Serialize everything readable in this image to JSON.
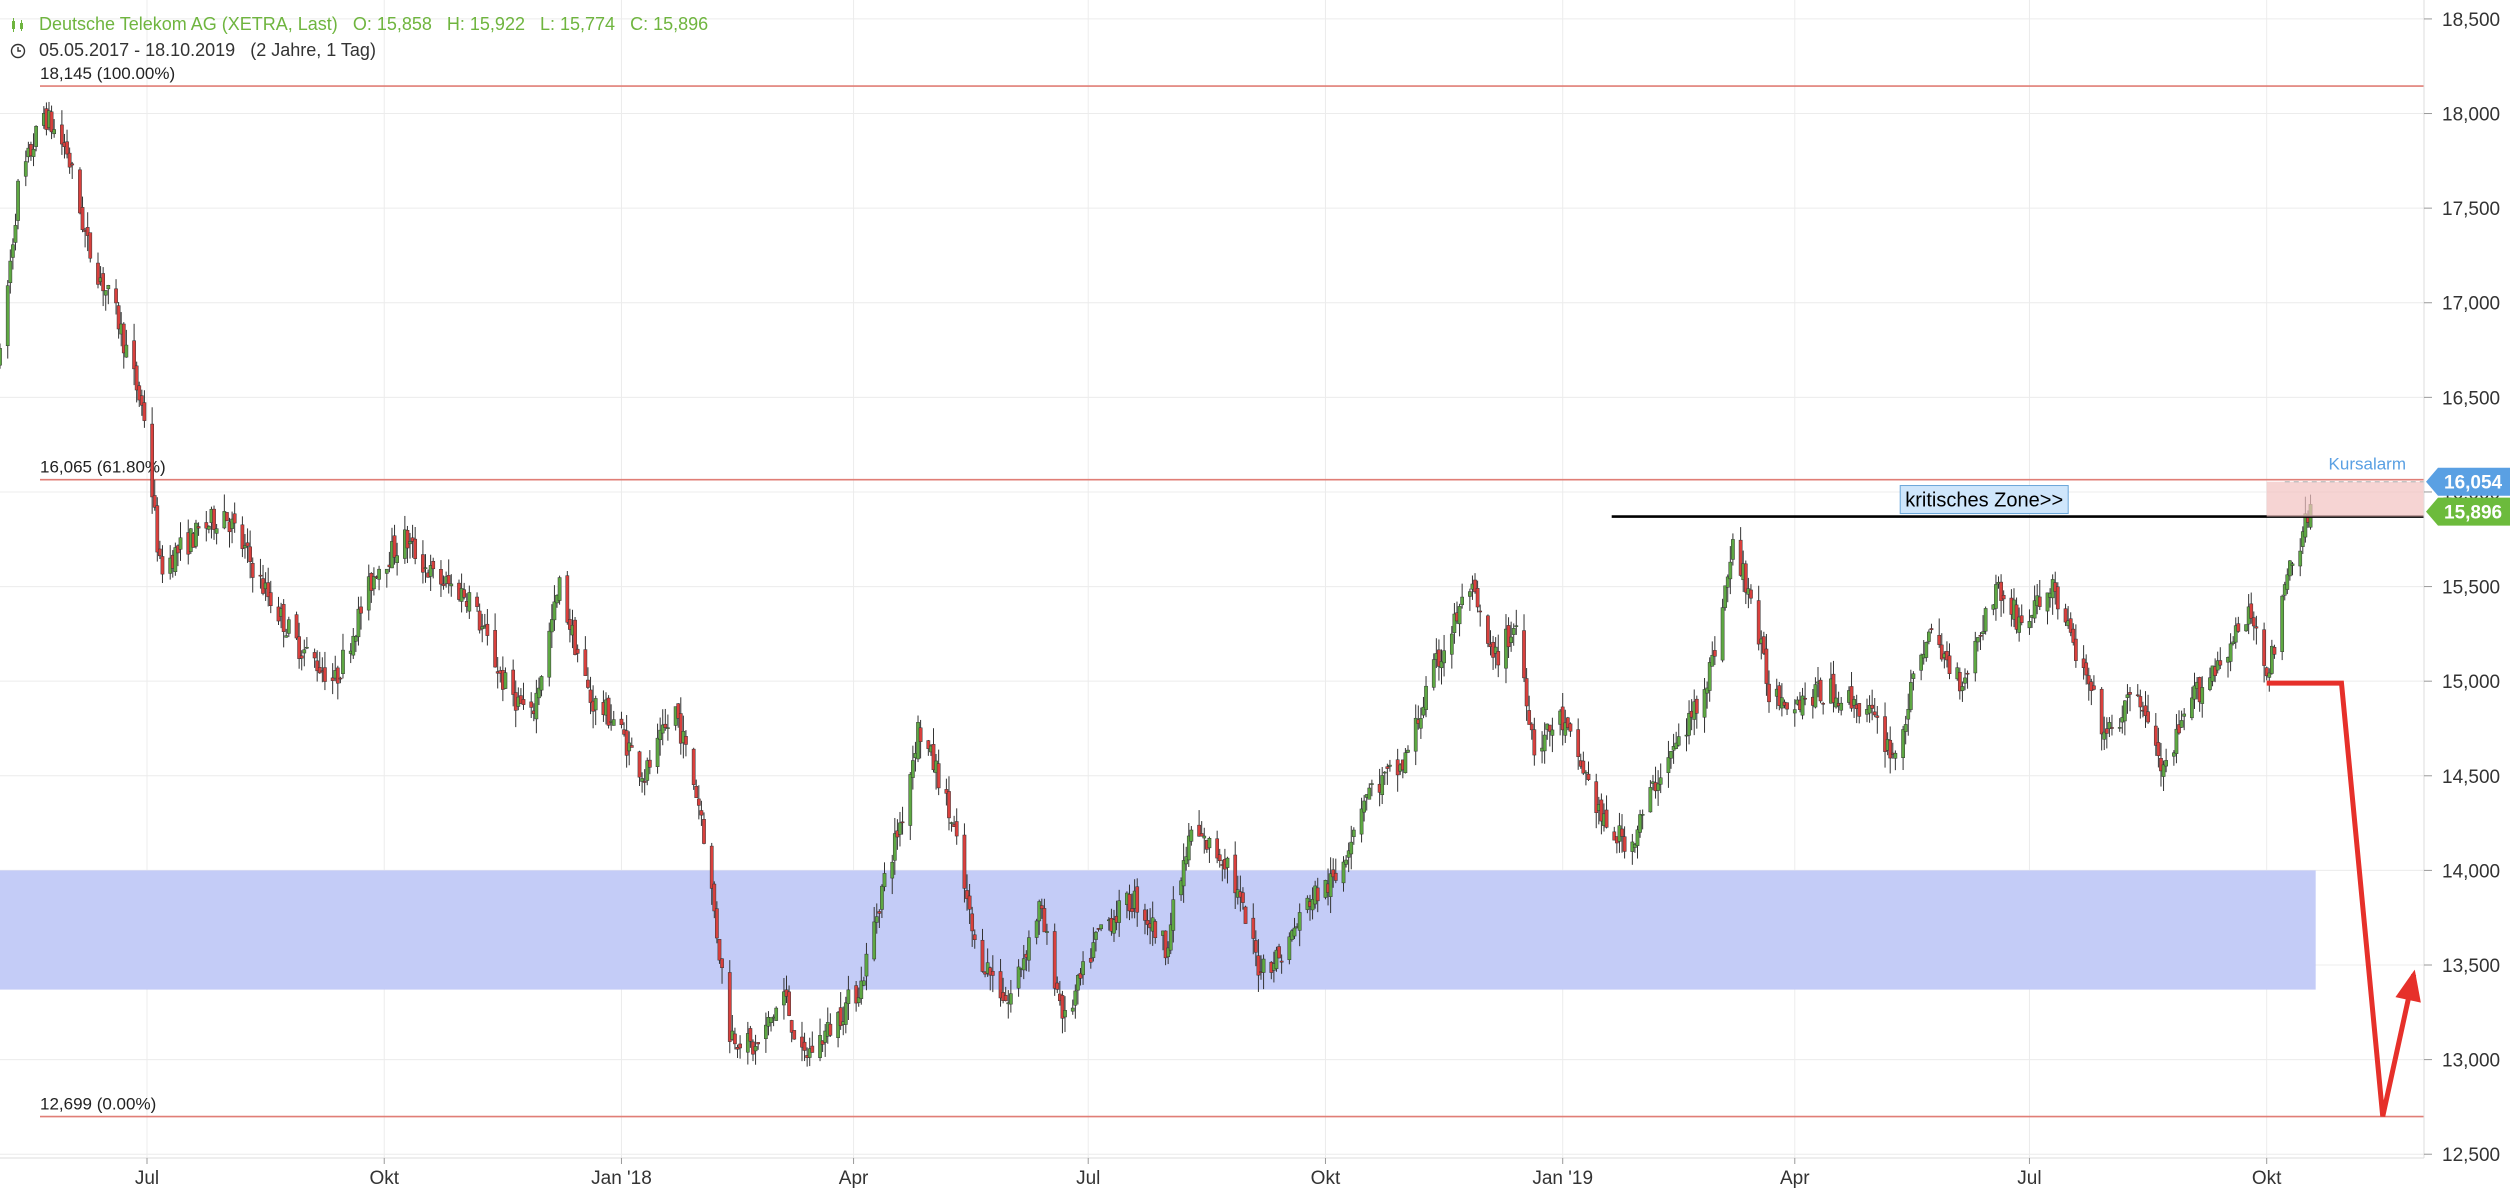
{
  "header": {
    "instrument": "Deutsche Telekom AG (XETRA, Last)",
    "open": "O: 15,858",
    "high": "H: 15,922",
    "low": "L: 15,774",
    "close": "C: 15,896",
    "range": "05.05.2017 - 18.10.2019",
    "period": "(2 Jahre, 1 Tag)"
  },
  "colors": {
    "up": "#5ea843",
    "down": "#d9403d",
    "fib": "#e07e76",
    "zone": "#c4ccf7",
    "price_badge": "#6cbb3c",
    "alarm_badge": "#5aa0e3",
    "arrow": "#e6302a"
  },
  "chart_data": {
    "type": "candlestick",
    "x_ticks": [
      {
        "label": "Jul",
        "date": "2017-07-01"
      },
      {
        "label": "Okt",
        "date": "2017-10-01"
      },
      {
        "label": "Jan '18",
        "date": "2018-01-01"
      },
      {
        "label": "Apr",
        "date": "2018-04-01"
      },
      {
        "label": "Jul",
        "date": "2018-07-01"
      },
      {
        "label": "Okt",
        "date": "2018-10-01"
      },
      {
        "label": "Jan '19",
        "date": "2019-01-01"
      },
      {
        "label": "Apr",
        "date": "2019-04-01"
      },
      {
        "label": "Jul",
        "date": "2019-07-01"
      },
      {
        "label": "Okt",
        "date": "2019-10-01"
      }
    ],
    "y_ticks": [
      "12,500",
      "13,000",
      "13,500",
      "14,000",
      "14,500",
      "15,000",
      "15,500",
      "16,000",
      "16,500",
      "17,000",
      "17,500",
      "18,000",
      "18,500"
    ],
    "y_tick_values": [
      12.5,
      13.0,
      13.5,
      14.0,
      14.5,
      15.0,
      15.5,
      16.0,
      16.5,
      17.0,
      17.5,
      18.0,
      18.5
    ],
    "ylim": [
      12.48,
      18.6
    ],
    "xlim": [
      "2017-05-05",
      "2019-12-01"
    ],
    "price_path": [
      [
        "2017-05-05",
        16.7
      ],
      [
        "2017-05-12",
        17.6
      ],
      [
        "2017-05-22",
        18.0
      ],
      [
        "2017-05-31",
        17.8
      ],
      [
        "2017-06-08",
        17.3
      ],
      [
        "2017-06-20",
        16.9
      ],
      [
        "2017-06-30",
        16.4
      ],
      [
        "2017-07-06",
        15.6
      ],
      [
        "2017-07-18",
        15.75
      ],
      [
        "2017-07-31",
        15.9
      ],
      [
        "2017-08-15",
        15.5
      ],
      [
        "2017-08-28",
        15.2
      ],
      [
        "2017-09-12",
        15.0
      ],
      [
        "2017-09-28",
        15.6
      ],
      [
        "2017-10-09",
        15.75
      ],
      [
        "2017-10-20",
        15.55
      ],
      [
        "2017-11-03",
        15.45
      ],
      [
        "2017-11-16",
        15.0
      ],
      [
        "2017-11-27",
        14.8
      ],
      [
        "2017-12-08",
        15.5
      ],
      [
        "2017-12-20",
        14.9
      ],
      [
        "2017-12-29",
        14.8
      ],
      [
        "2018-01-10",
        14.5
      ],
      [
        "2018-01-22",
        14.85
      ],
      [
        "2018-02-01",
        14.3
      ],
      [
        "2018-02-12",
        13.15
      ],
      [
        "2018-02-22",
        13.05
      ],
      [
        "2018-03-05",
        13.35
      ],
      [
        "2018-03-12",
        13.0
      ],
      [
        "2018-03-22",
        13.15
      ],
      [
        "2018-04-04",
        13.4
      ],
      [
        "2018-04-12",
        13.9
      ],
      [
        "2018-04-20",
        14.3
      ],
      [
        "2018-04-26",
        14.75
      ],
      [
        "2018-05-04",
        14.5
      ],
      [
        "2018-05-10",
        14.2
      ],
      [
        "2018-05-18",
        13.6
      ],
      [
        "2018-05-31",
        13.3
      ],
      [
        "2018-06-12",
        13.8
      ],
      [
        "2018-06-22",
        13.2
      ],
      [
        "2018-07-06",
        13.7
      ],
      [
        "2018-07-19",
        13.85
      ],
      [
        "2018-07-31",
        13.6
      ],
      [
        "2018-08-10",
        14.2
      ],
      [
        "2018-08-24",
        14.05
      ],
      [
        "2018-09-05",
        13.5
      ],
      [
        "2018-09-14",
        13.55
      ],
      [
        "2018-09-25",
        13.85
      ],
      [
        "2018-10-05",
        13.95
      ],
      [
        "2018-10-16",
        14.4
      ],
      [
        "2018-10-31",
        14.55
      ],
      [
        "2018-11-12",
        15.05
      ],
      [
        "2018-11-26",
        15.5
      ],
      [
        "2018-12-05",
        15.1
      ],
      [
        "2018-12-14",
        15.3
      ],
      [
        "2018-12-21",
        14.65
      ],
      [
        "2018-12-31",
        14.8
      ],
      [
        "2019-01-10",
        14.5
      ],
      [
        "2019-01-18",
        14.2
      ],
      [
        "2019-01-28",
        14.15
      ],
      [
        "2019-02-07",
        14.5
      ],
      [
        "2019-02-18",
        14.75
      ],
      [
        "2019-02-28",
        15.1
      ],
      [
        "2019-03-08",
        15.7
      ],
      [
        "2019-03-14",
        15.5
      ],
      [
        "2019-03-22",
        14.95
      ],
      [
        "2019-04-01",
        14.9
      ],
      [
        "2019-04-15",
        14.95
      ],
      [
        "2019-04-29",
        14.85
      ],
      [
        "2019-05-10",
        14.6
      ],
      [
        "2019-05-22",
        15.25
      ],
      [
        "2019-06-05",
        15.0
      ],
      [
        "2019-06-18",
        15.5
      ],
      [
        "2019-06-28",
        15.3
      ],
      [
        "2019-07-10",
        15.5
      ],
      [
        "2019-07-19",
        15.15
      ],
      [
        "2019-07-31",
        14.7
      ],
      [
        "2019-08-12",
        14.95
      ],
      [
        "2019-08-22",
        14.5
      ],
      [
        "2019-09-02",
        14.9
      ],
      [
        "2019-09-12",
        15.1
      ],
      [
        "2019-09-25",
        15.35
      ],
      [
        "2019-10-02",
        15.05
      ],
      [
        "2019-10-10",
        15.6
      ],
      [
        "2019-10-18",
        15.9
      ]
    ],
    "fib_levels": [
      {
        "value": 18.145,
        "label": "18,145 (100.00%)"
      },
      {
        "value": 16.065,
        "label": "16,065 (61.80%)"
      },
      {
        "value": 12.699,
        "label": "12,699 (0.00%)"
      }
    ],
    "zone": {
      "from": "2017-05-05",
      "to": "2019-10-20",
      "low": 13.37,
      "high": 14.0
    },
    "resistance": {
      "value": 15.87,
      "from": "2019-01-20",
      "to": "2019-12-01"
    },
    "annotation": {
      "text": "kritisches Zone>>",
      "date": "2019-06-15",
      "value": 15.96
    },
    "current_price": {
      "label": "15,896",
      "value": 15.896
    },
    "alarm": {
      "label": "16,054",
      "value": 16.054,
      "caption": "Kursalarm"
    },
    "projection": [
      [
        "2019-10-01",
        14.99
      ],
      [
        "2019-10-30",
        14.99
      ],
      [
        "2019-11-15",
        12.7
      ],
      [
        "2019-11-27",
        13.45
      ]
    ]
  }
}
